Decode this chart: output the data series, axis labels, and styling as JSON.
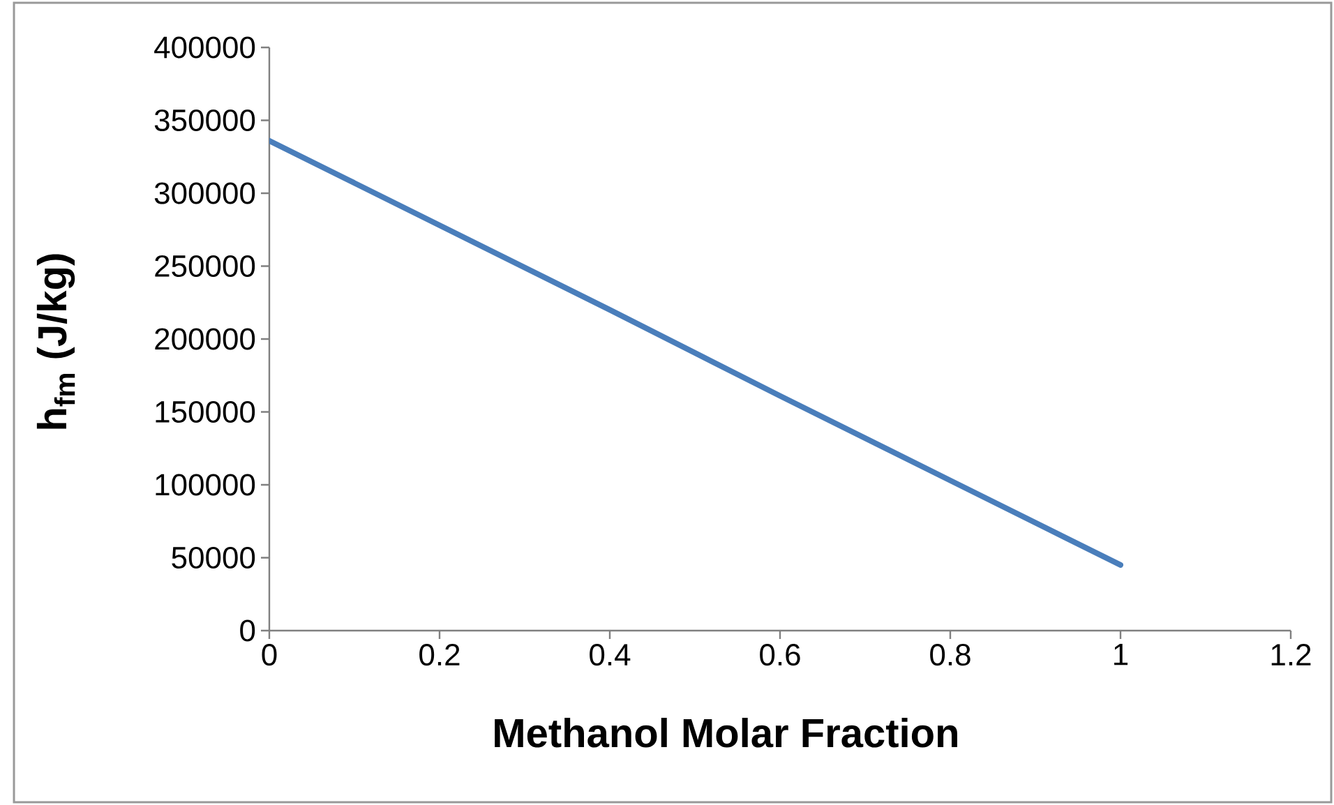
{
  "chart_data": {
    "type": "line",
    "xlabel": "Methanol Molar Fraction",
    "ylabel": "h$_{fm}$ (J/kg)",
    "x": [
      0,
      0.2,
      0.4,
      0.6,
      0.8,
      1
    ],
    "series": [
      {
        "color": "#4a7ebb",
        "values": [
          336000,
          278000,
          220000,
          161000,
          103000,
          45000
        ]
      }
    ],
    "xlim": [
      0,
      1.2
    ],
    "xticks": [
      0,
      0.2,
      0.4,
      0.6,
      0.8,
      1,
      1.2
    ],
    "ylim": [
      0,
      400000
    ],
    "yticks": [
      0,
      50000,
      100000,
      150000,
      200000,
      250000,
      300000,
      350000,
      400000
    ],
    "grid": false,
    "legend": false,
    "marker": "none",
    "line_style": "solid"
  }
}
